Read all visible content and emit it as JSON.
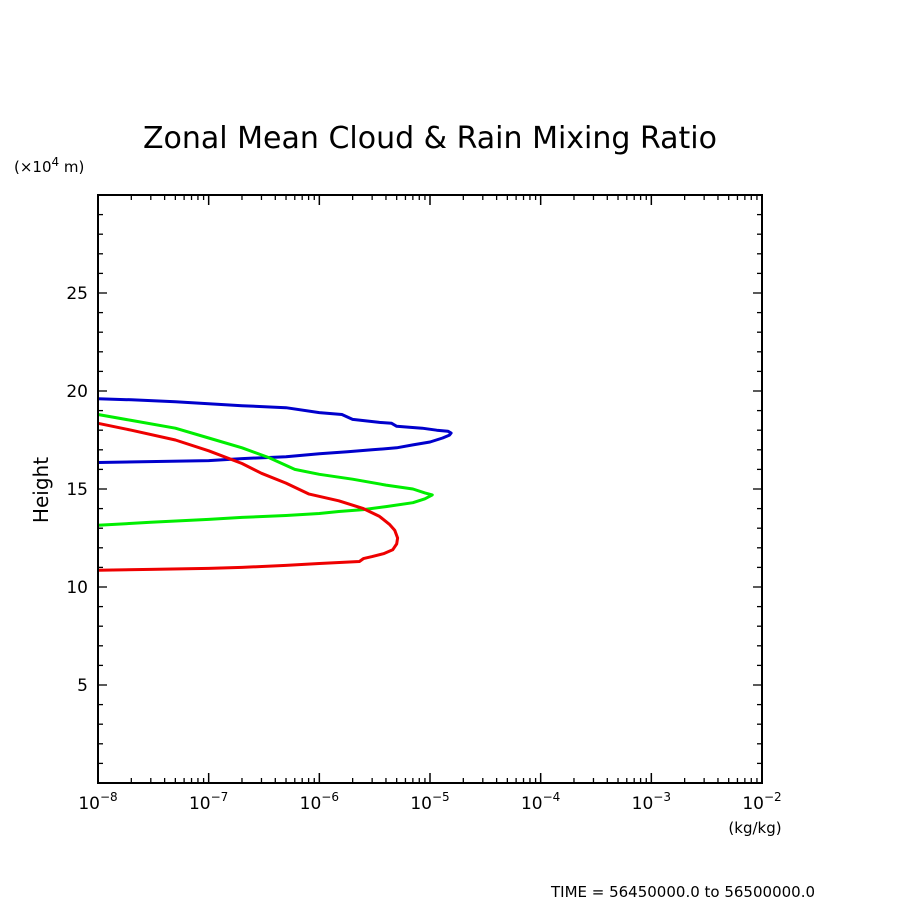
{
  "chart_data": {
    "type": "line",
    "title": "Zonal Mean Cloud & Rain Mixing Ratio",
    "ylabel": "Height",
    "y_unit": "(×10⁴ m)",
    "y_unit_prefix": "(×10",
    "y_unit_exp": "4",
    "y_unit_suffix": " m)",
    "xlabel_unit": "(kg/kg)",
    "footer": "TIME = 56450000.0 to 56500000.0",
    "x_scale": "log",
    "xlim": [
      1e-08,
      0.01
    ],
    "ylim": [
      0,
      30
    ],
    "x_ticks": [
      {
        "value": 1e-08,
        "base": "10",
        "exp": "−8"
      },
      {
        "value": 1e-07,
        "base": "10",
        "exp": "−7"
      },
      {
        "value": 1e-06,
        "base": "10",
        "exp": "−6"
      },
      {
        "value": 1e-05,
        "base": "10",
        "exp": "−5"
      },
      {
        "value": 0.0001,
        "base": "10",
        "exp": "−4"
      },
      {
        "value": 0.001,
        "base": "10",
        "exp": "−3"
      },
      {
        "value": 0.01,
        "base": "10",
        "exp": "−2"
      }
    ],
    "y_ticks": [
      {
        "value": 5,
        "label": "5"
      },
      {
        "value": 10,
        "label": "10"
      },
      {
        "value": 15,
        "label": "15"
      },
      {
        "value": 20,
        "label": "20"
      },
      {
        "value": 25,
        "label": "25"
      }
    ],
    "grid": false,
    "legend": "none",
    "series": [
      {
        "color": "#0000cc",
        "x": [
          1e-08,
          2e-08,
          5e-08,
          1e-07,
          2e-07,
          5e-07,
          1e-06,
          1.6e-06,
          2e-06,
          3.5e-06,
          4.5e-06,
          5e-06,
          6.5e-06,
          8.5e-06,
          1.15e-05,
          1.45e-05,
          1.55e-05,
          1.5e-05,
          1.3e-05,
          1e-05,
          7e-06,
          5e-06,
          3e-06,
          1.8e-06,
          1e-06,
          5e-07,
          2e-07,
          1e-07,
          1e-08
        ],
        "y": [
          19.6,
          19.55,
          19.45,
          19.35,
          19.25,
          19.15,
          18.9,
          18.8,
          18.55,
          18.4,
          18.35,
          18.2,
          18.15,
          18.1,
          18.0,
          17.95,
          17.85,
          17.75,
          17.6,
          17.4,
          17.25,
          17.1,
          17.0,
          16.9,
          16.8,
          16.65,
          16.55,
          16.45,
          16.35
        ]
      },
      {
        "color": "#00ee00",
        "x": [
          1e-08,
          2e-08,
          5e-08,
          1e-07,
          2e-07,
          3.5e-07,
          6e-07,
          1e-06,
          2e-06,
          4e-06,
          7e-06,
          9e-06,
          1.05e-05,
          9e-06,
          7e-06,
          4e-06,
          2.5e-06,
          1.5e-06,
          1e-06,
          5e-07,
          2e-07,
          1e-07,
          3e-08,
          1e-08
        ],
        "y": [
          18.8,
          18.5,
          18.1,
          17.6,
          17.1,
          16.6,
          16.0,
          15.75,
          15.5,
          15.2,
          15.0,
          14.8,
          14.7,
          14.5,
          14.3,
          14.1,
          13.95,
          13.85,
          13.75,
          13.65,
          13.55,
          13.45,
          13.3,
          13.15
        ]
      },
      {
        "color": "#ee0000",
        "x": [
          1e-08,
          2e-08,
          5e-08,
          1e-07,
          2e-07,
          3e-07,
          5e-07,
          8e-07,
          1.5e-06,
          2.5e-06,
          3.5e-06,
          4.3e-06,
          4.8e-06,
          5.1e-06,
          5e-06,
          4.6e-06,
          3.8e-06,
          3e-06,
          2.5e-06,
          2.3e-06,
          1e-06,
          5e-07,
          2e-07,
          1e-07,
          3e-08,
          1e-08
        ],
        "y": [
          18.35,
          18.0,
          17.5,
          16.95,
          16.3,
          15.8,
          15.3,
          14.75,
          14.4,
          14.0,
          13.6,
          13.2,
          12.9,
          12.5,
          12.2,
          11.9,
          11.7,
          11.55,
          11.45,
          11.3,
          11.2,
          11.1,
          11.0,
          10.95,
          10.9,
          10.85
        ]
      }
    ]
  }
}
